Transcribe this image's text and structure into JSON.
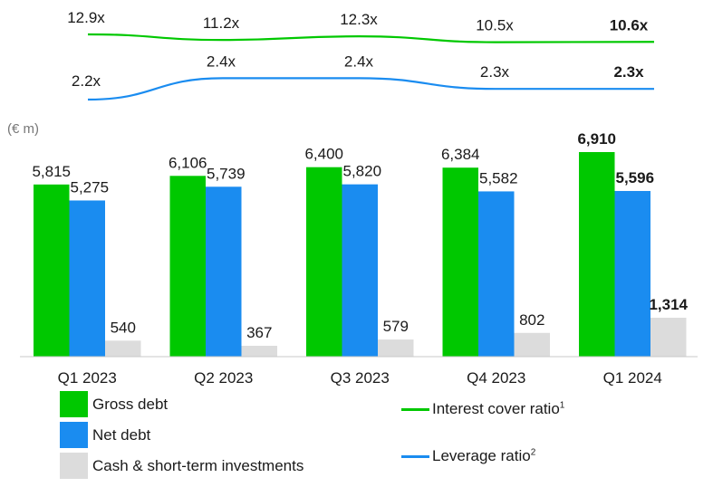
{
  "chart_data": {
    "type": "bar",
    "unit_label": "(€ m)",
    "categories": [
      "Q1 2023",
      "Q2 2023",
      "Q3 2023",
      "Q4 2023",
      "Q1 2024"
    ],
    "series": [
      {
        "name": "Gross debt",
        "color": "#00c800",
        "values": [
          5815,
          6106,
          6400,
          6384,
          6910
        ],
        "labels": [
          "5,815",
          "6,106",
          "6,400",
          "6,384",
          "6,910"
        ]
      },
      {
        "name": "Net debt",
        "color": "#1a8cf0",
        "values": [
          5275,
          5739,
          5820,
          5582,
          5596
        ],
        "labels": [
          "5,275",
          "5,739",
          "5,820",
          "5,582",
          "5,596"
        ]
      },
      {
        "name": "Cash & short-term investments",
        "color": "#dcdcdc",
        "values": [
          540,
          367,
          579,
          802,
          1314
        ],
        "labels": [
          "540",
          "367",
          "579",
          "802",
          "1,314"
        ]
      }
    ],
    "lines": [
      {
        "name": "Interest cover ratio",
        "sup": "1",
        "color": "#00c800",
        "values": [
          12.9,
          11.2,
          12.3,
          10.5,
          10.6
        ],
        "labels": [
          "12.9x",
          "11.2x",
          "12.3x",
          "10.5x",
          "10.6x"
        ]
      },
      {
        "name": "Leverage ratio",
        "sup": "2",
        "color": "#1a8cf0",
        "values": [
          2.2,
          2.4,
          2.4,
          2.3,
          2.3
        ],
        "labels": [
          "2.2x",
          "2.4x",
          "2.4x",
          "2.3x",
          "2.3x"
        ]
      }
    ],
    "highlight_last": true,
    "highlight_colors": [
      "#00c800",
      "#1a8cf0",
      "#1a1a1a"
    ]
  }
}
